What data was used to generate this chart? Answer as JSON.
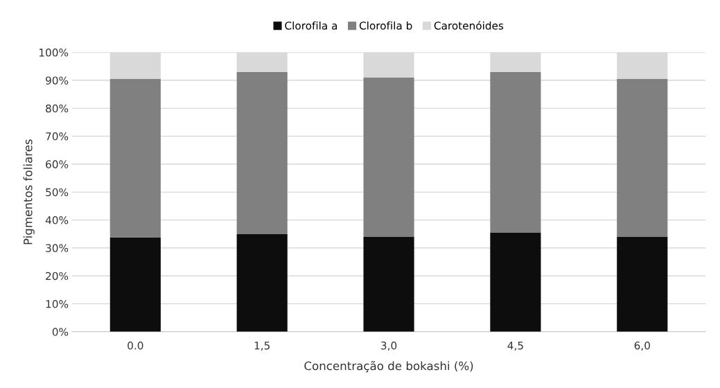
{
  "chart_data": {
    "type": "bar",
    "stacked": true,
    "xlabel": "Concentração de bokashi (%)",
    "ylabel": "Pigmentos foliares",
    "categories": [
      "0.0",
      "1,5",
      "3,0",
      "4,5",
      "6,0"
    ],
    "series": [
      {
        "name": "Clorofila a",
        "color": "#0d0d0d",
        "values": [
          33.7,
          34.9,
          33.9,
          35.4,
          33.9
        ]
      },
      {
        "name": "Clorofila b",
        "color": "#808080",
        "values": [
          56.8,
          58.1,
          57.1,
          57.6,
          56.6
        ]
      },
      {
        "name": "Carotenóides",
        "color": "#d9d9d9",
        "values": [
          9.5,
          7.0,
          9.0,
          7.0,
          9.5
        ]
      }
    ],
    "ylim": [
      0,
      100
    ],
    "yticks": [
      {
        "value": 0,
        "label": "0%"
      },
      {
        "value": 10,
        "label": "10%"
      },
      {
        "value": 20,
        "label": "20%"
      },
      {
        "value": 30,
        "label": "30%"
      },
      {
        "value": 40,
        "label": "40%"
      },
      {
        "value": 50,
        "label": "50%"
      },
      {
        "value": 60,
        "label": "60%"
      },
      {
        "value": 70,
        "label": "70%"
      },
      {
        "value": 80,
        "label": "80%"
      },
      {
        "value": 90,
        "label": "90%"
      },
      {
        "value": 100,
        "label": "100%"
      }
    ],
    "grid": "y",
    "legend": "top"
  }
}
